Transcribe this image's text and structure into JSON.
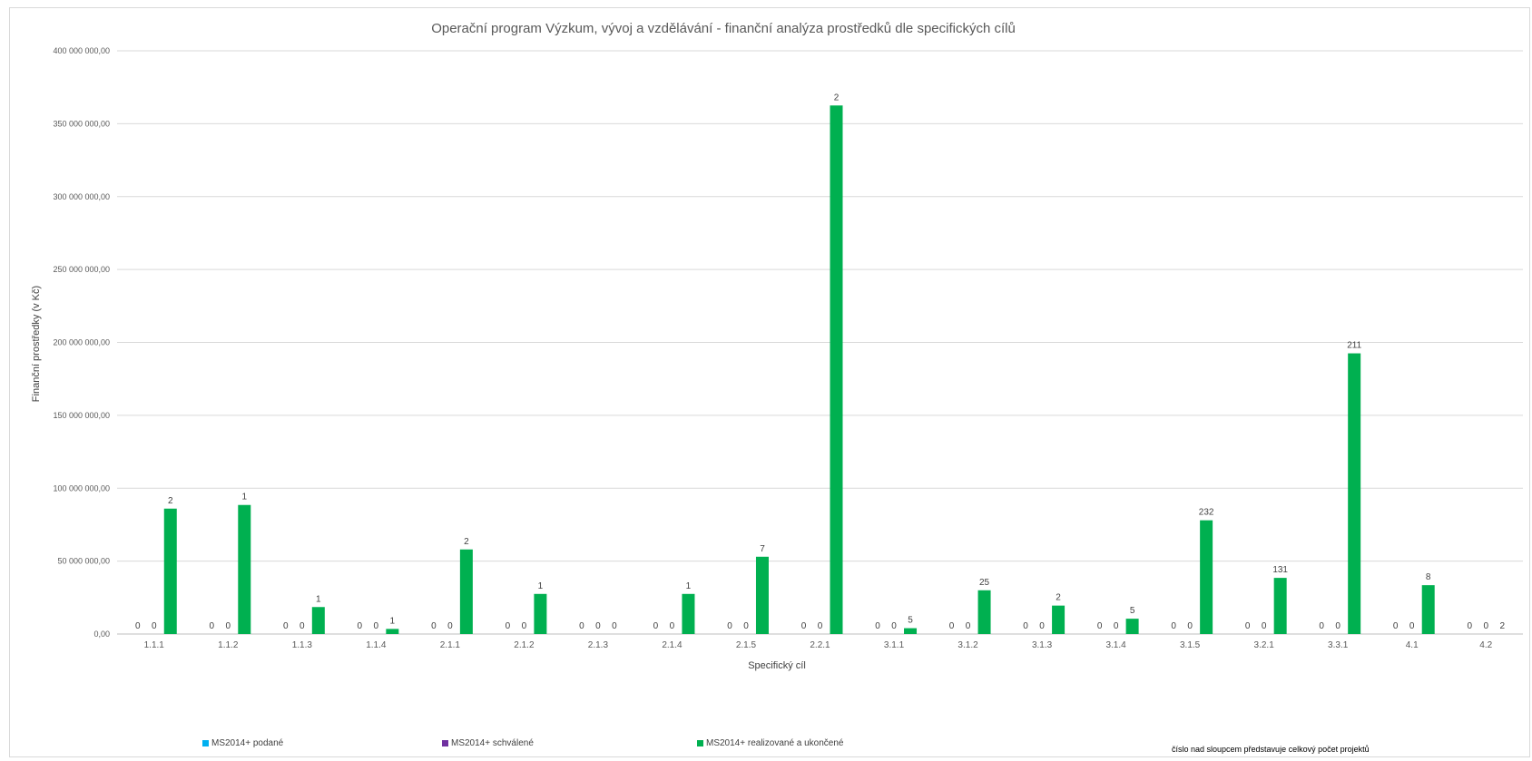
{
  "chart_data": {
    "type": "bar",
    "title": "Operační program Výzkum, vývoj a vzdělávání - finanční analýza prostředků dle specifických cílů",
    "xlabel": "Specifický cíl",
    "ylabel": "Finanční prostředky  (v Kč)",
    "ylim": [
      0,
      400000000
    ],
    "yticks": [
      0,
      50000000,
      100000000,
      150000000,
      200000000,
      250000000,
      300000000,
      350000000,
      400000000
    ],
    "ytick_labels": [
      "0,00",
      "50 000 000,00",
      "100 000 000,00",
      "150 000 000,00",
      "200 000 000,00",
      "250 000 000,00",
      "300 000 000,00",
      "350 000 000,00",
      "400 000 000,00"
    ],
    "grid": true,
    "legend_position": "bottom",
    "categories": [
      "1.1.1",
      "1.1.2",
      "1.1.3",
      "1.1.4",
      "2.1.1",
      "2.1.2",
      "2.1.3",
      "2.1.4",
      "2.1.5",
      "2.2.1",
      "3.1.1",
      "3.1.2",
      "3.1.3",
      "3.1.4",
      "3.1.5",
      "3.2.1",
      "3.3.1",
      "4.1",
      "4.2"
    ],
    "series": [
      {
        "name": "MS2014+ podané",
        "color": "#00b0f0",
        "values": [
          0,
          0,
          0,
          0,
          0,
          0,
          0,
          0,
          0,
          0,
          0,
          0,
          0,
          0,
          0,
          0,
          0,
          0,
          0
        ],
        "labels": [
          "0",
          "0",
          "0",
          "0",
          "0",
          "0",
          "0",
          "0",
          "0",
          "0",
          "0",
          "0",
          "0",
          "0",
          "0",
          "0",
          "0",
          "0",
          "0"
        ]
      },
      {
        "name": "MS2014+ schválené",
        "color": "#7030a0",
        "values": [
          0,
          0,
          0,
          0,
          0,
          0,
          0,
          0,
          0,
          0,
          0,
          0,
          0,
          0,
          0,
          0,
          0,
          0,
          0
        ],
        "labels": [
          "0",
          "0",
          "0",
          "0",
          "0",
          "0",
          "0",
          "0",
          "0",
          "0",
          "0",
          "0",
          "0",
          "0",
          "0",
          "0",
          "0",
          "0",
          "0"
        ]
      },
      {
        "name": "MS2014+ realizované a ukončené",
        "color": "#00b050",
        "values": [
          86000000,
          88500000,
          18500000,
          3500000,
          58000000,
          27500000,
          0,
          27500000,
          53000000,
          362500000,
          4000000,
          30000000,
          19500000,
          10500000,
          78000000,
          38500000,
          192500000,
          33500000,
          0
        ],
        "labels": [
          "2",
          "1",
          "1",
          "1",
          "2",
          "1",
          "0",
          "1",
          "7",
          "2",
          "5",
          "25",
          "2",
          "5",
          "232",
          "131",
          "211",
          "8",
          "2"
        ]
      }
    ],
    "note": "číslo nad sloupcem představuje celkový počet projektů"
  }
}
